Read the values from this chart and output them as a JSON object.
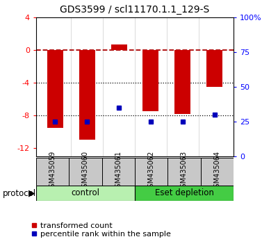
{
  "title": "GDS3599 / scl11170.1.1_129-S",
  "samples": [
    "GSM435059",
    "GSM435060",
    "GSM435061",
    "GSM435062",
    "GSM435063",
    "GSM435064"
  ],
  "red_values": [
    -9.5,
    -11.0,
    0.7,
    -7.5,
    -7.8,
    -4.5
  ],
  "blue_pct": [
    25,
    25,
    35,
    25,
    25,
    30
  ],
  "ylim_left": [
    -13,
    4
  ],
  "ylim_right": [
    0,
    100
  ],
  "yticks_left": [
    4,
    0,
    -4,
    -8,
    -12
  ],
  "yticks_right": [
    100,
    75,
    50,
    25,
    0
  ],
  "ytick_labels_right": [
    "100%",
    "75",
    "50",
    "25",
    "0"
  ],
  "hlines": [
    0,
    -4,
    -8
  ],
  "hline_styles": [
    "dashed",
    "dotted",
    "dotted"
  ],
  "hline_colors": [
    "#aa0000",
    "black",
    "black"
  ],
  "bar_width": 0.5,
  "red_color": "#cc0000",
  "blue_color": "#0000bb",
  "control_color": "#b8f0b0",
  "eset_color": "#44cc44",
  "legend_red_label": "transformed count",
  "legend_blue_label": "percentile rank within the sample",
  "protocol_label": "protocol",
  "title_fontsize": 10,
  "tick_fontsize": 8,
  "sample_fontsize": 7,
  "group_fontsize": 8.5,
  "legend_fontsize": 8
}
